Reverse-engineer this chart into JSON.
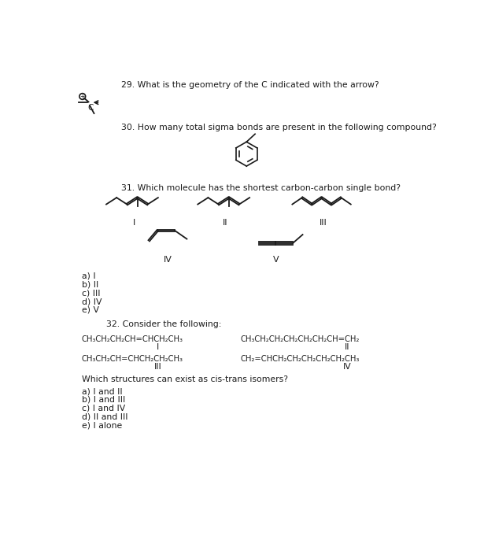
{
  "bg_color": "#ffffff",
  "text_color": "#1a1a1a",
  "q29_text": "29. What is the geometry of the C indicated with the arrow?",
  "q30_text": "30. How many total sigma bonds are present in the following compound?",
  "q31_text": "31. Which molecule has the shortest carbon-carbon single bond?",
  "q31_answers": [
    "a) I",
    "b) II",
    "c) III",
    "d) IV",
    "e) V"
  ],
  "q32_text": "32. Consider the following:",
  "q32_mol_I": "CH₃CH₂CH₂CH=CHCH₂CH₃",
  "q32_mol_II": "CH₃CH₂CH₂CH₂CH₂CH₂CH=CH₂",
  "q32_mol_III": "CH₃CH₂CH=CHCH₂CH₂CH₃",
  "q32_mol_IV": "CH₂=CHCH₂CH₂CH₂CH₂CH₂CH₃",
  "q32_question": "Which structures can exist as cis-trans isomers?",
  "q32_answers": [
    "a) I and II",
    "b) I and III",
    "c) I and IV",
    "d) II and III",
    "e) I alone"
  ],
  "font_size": 7.8
}
